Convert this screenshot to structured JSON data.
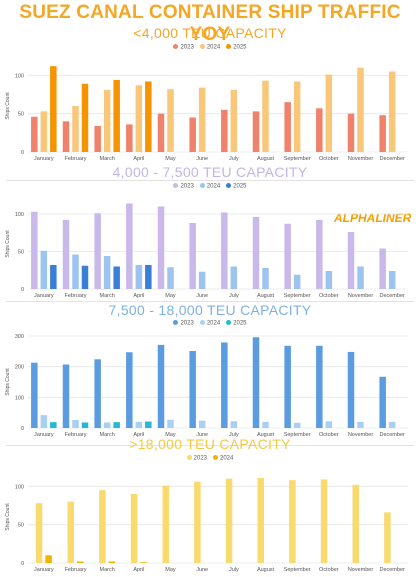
{
  "title": "SUEZ CANAL CONTAINER SHIP TRAFFIC YOY",
  "watermark": "ALPHALINER",
  "colors": {
    "title": "#f5a623",
    "watermark": "#f5a000",
    "grid": "#e6e6e6",
    "axis_text": "#555555"
  },
  "chart_data": [
    {
      "type": "bar",
      "title": "<4,000 TEU CAPACITY",
      "title_color": "#f5a623",
      "ylabel": "Ships Count",
      "ylim": [
        0,
        120
      ],
      "yticks": [
        0,
        50,
        100
      ],
      "grid": true,
      "legend_position": "top-center",
      "categories": [
        "January",
        "February",
        "March",
        "April",
        "May",
        "June",
        "July",
        "August",
        "September",
        "October",
        "November",
        "December"
      ],
      "series": [
        {
          "name": "2023",
          "color": "#f0816a",
          "values": [
            46,
            40,
            34,
            36,
            50,
            45,
            55,
            53,
            65,
            57,
            50,
            48
          ]
        },
        {
          "name": "2024",
          "color": "#f9c77a",
          "values": [
            53,
            60,
            81,
            87,
            82,
            84,
            81,
            93,
            92,
            101,
            110,
            105
          ]
        },
        {
          "name": "2025",
          "color": "#f59300",
          "values": [
            112,
            89,
            94,
            92,
            null,
            null,
            null,
            null,
            null,
            null,
            null,
            null
          ]
        }
      ]
    },
    {
      "type": "bar",
      "title": "4,000 - 7,500 TEU CAPACITY",
      "title_color": "#c5b4e3",
      "ylabel": "Ships Count",
      "ylim": [
        0,
        120
      ],
      "yticks": [
        0,
        50,
        100
      ],
      "grid": true,
      "legend_position": "top-center",
      "categories": [
        "January",
        "February",
        "March",
        "April",
        "May",
        "June",
        "July",
        "August",
        "September",
        "October",
        "November",
        "December"
      ],
      "series": [
        {
          "name": "2023",
          "color": "#c9b8ea",
          "values": [
            103,
            92,
            101,
            114,
            110,
            88,
            102,
            96,
            87,
            92,
            76,
            54
          ]
        },
        {
          "name": "2024",
          "color": "#9cc4ef",
          "values": [
            51,
            46,
            44,
            32,
            29,
            23,
            30,
            28,
            19,
            24,
            30,
            24
          ]
        },
        {
          "name": "2025",
          "color": "#3a7fd5",
          "values": [
            32,
            31,
            30,
            32,
            null,
            null,
            null,
            null,
            null,
            null,
            null,
            null
          ]
        }
      ]
    },
    {
      "type": "bar",
      "title": "7,500 - 18,000 TEU CAPACITY",
      "title_color": "#7eb1e3",
      "ylabel": "Ships Count",
      "ylim": [
        0,
        300
      ],
      "yticks": [
        0,
        100,
        200,
        300
      ],
      "grid": true,
      "legend_position": "top-center",
      "categories": [
        "January",
        "February",
        "March",
        "April",
        "May",
        "June",
        "July",
        "August",
        "September",
        "October",
        "November",
        "December"
      ],
      "series": [
        {
          "name": "2023",
          "color": "#5b9be0",
          "values": [
            213,
            207,
            224,
            247,
            271,
            251,
            279,
            296,
            268,
            268,
            248,
            167
          ]
        },
        {
          "name": "2024",
          "color": "#a9d0f2",
          "values": [
            42,
            26,
            18,
            20,
            27,
            24,
            22,
            20,
            17,
            22,
            20,
            20
          ]
        },
        {
          "name": "2025",
          "color": "#22b8d8",
          "values": [
            19,
            18,
            19,
            21,
            null,
            null,
            null,
            null,
            null,
            null,
            null,
            null
          ]
        }
      ]
    },
    {
      "type": "bar",
      "title": ">18,000 TEU CAPACITY",
      "title_color": "#f5c842",
      "ylabel": "Ships Count",
      "ylim": [
        0,
        120
      ],
      "yticks": [
        0,
        50,
        100
      ],
      "grid": true,
      "legend_position": "top-center",
      "categories": [
        "January",
        "February",
        "March",
        "April",
        "May",
        "June",
        "July",
        "August",
        "September",
        "October",
        "November",
        "December"
      ],
      "series": [
        {
          "name": "2023",
          "color": "#f8da6e",
          "values": [
            78,
            80,
            95,
            90,
            101,
            106,
            110,
            111,
            108,
            109,
            102,
            66
          ]
        },
        {
          "name": "2024",
          "color": "#f0b400",
          "values": [
            10,
            2,
            2,
            1,
            0,
            0,
            0,
            0,
            0,
            0,
            0,
            0
          ]
        }
      ]
    }
  ]
}
